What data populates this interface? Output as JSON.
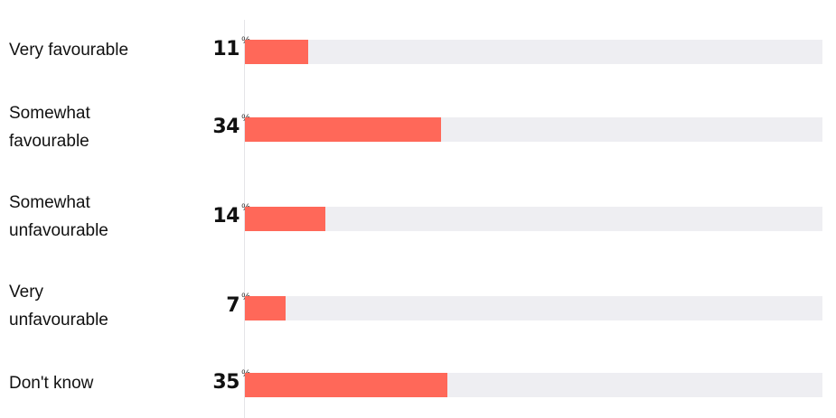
{
  "chart_data": {
    "type": "bar",
    "orientation": "horizontal",
    "categories": [
      [
        "Very favourable"
      ],
      [
        "Somewhat",
        "favourable"
      ],
      [
        "Somewhat",
        "unfavourable"
      ],
      [
        "Very",
        "unfavourable"
      ],
      [
        "Don't know"
      ]
    ],
    "values": [
      11,
      34,
      14,
      7,
      35
    ],
    "value_unit": "%",
    "xlim": [
      0,
      100
    ],
    "grid": false,
    "legend": "none",
    "colors": {
      "bar": "#ff6859",
      "track": "#eeeef2"
    }
  }
}
